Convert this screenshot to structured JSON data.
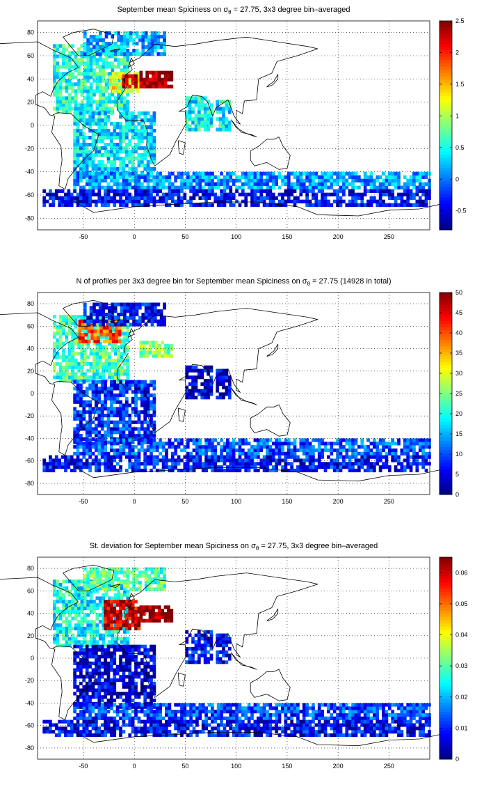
{
  "chart_data": [
    {
      "type": "heatmap",
      "title_prefix": "September mean Spiciness on ",
      "title_symbol": "σ",
      "title_sub": "θ",
      "title_suffix": " = 27.75, 3x3 degree bin–averaged",
      "xlim": [
        -95,
        290
      ],
      "ylim": [
        -90,
        90
      ],
      "xticks": [
        -50,
        0,
        50,
        100,
        150,
        200,
        250
      ],
      "yticks": [
        80,
        60,
        40,
        20,
        0,
        -20,
        -40,
        -60,
        -80
      ],
      "grid": true,
      "colorbar": {
        "min": -0.8,
        "max": 2.5,
        "ticks": [
          2.5,
          2,
          1.5,
          1,
          0.5,
          0,
          -0.5
        ],
        "tick_labels": [
          "2.5",
          "2",
          "1.5",
          "1",
          "0.5",
          "0",
          "-0.5"
        ]
      },
      "regions": [
        {
          "name": "north-atlantic",
          "x": [
            -80,
            -5
          ],
          "y": [
            10,
            70
          ],
          "value": 0.55
        },
        {
          "name": "gulf-stream-core",
          "x": [
            -25,
            5
          ],
          "y": [
            28,
            46
          ],
          "value": 1.2
        },
        {
          "name": "med-outflow",
          "x": [
            -12,
            2
          ],
          "y": [
            32,
            44
          ],
          "value": 2.2
        },
        {
          "name": "mediterranean",
          "x": [
            5,
            38
          ],
          "y": [
            32,
            46
          ],
          "value": 2.5
        },
        {
          "name": "south-atlantic",
          "x": [
            -60,
            20
          ],
          "y": [
            -45,
            10
          ],
          "value": 0.35
        },
        {
          "name": "arabian-sea",
          "x": [
            50,
            75
          ],
          "y": [
            -5,
            25
          ],
          "value": 0.45
        },
        {
          "name": "bay-of-bengal",
          "x": [
            80,
            95
          ],
          "y": [
            -5,
            20
          ],
          "value": 0.4
        },
        {
          "name": "southern-ocean-north",
          "x": [
            -60,
            290
          ],
          "y": [
            -55,
            -40
          ],
          "value": 0.1
        },
        {
          "name": "southern-ocean-south",
          "x": [
            -90,
            290
          ],
          "y": [
            -70,
            -55
          ],
          "value": -0.4
        },
        {
          "name": "arctic-nordic",
          "x": [
            -50,
            30
          ],
          "y": [
            60,
            80
          ],
          "value": 0.15
        }
      ]
    },
    {
      "type": "heatmap",
      "title_prefix": "N of profiles per 3x3 degree bin for September mean Spiciness on ",
      "title_symbol": "σ",
      "title_sub": "θ",
      "title_suffix": " = 27.75 (14928 in total)",
      "xlim": [
        -95,
        290
      ],
      "ylim": [
        -90,
        90
      ],
      "xticks": [
        -50,
        0,
        50,
        100,
        150,
        200,
        250
      ],
      "yticks": [
        80,
        60,
        40,
        20,
        0,
        -20,
        -40,
        -60,
        -80
      ],
      "grid": true,
      "colorbar": {
        "min": 0,
        "max": 50,
        "ticks": [
          50,
          45,
          40,
          35,
          30,
          25,
          20,
          15,
          10,
          5,
          0
        ],
        "tick_labels": [
          "50",
          "45",
          "40",
          "35",
          "30",
          "25",
          "20",
          "15",
          "10",
          "5",
          "0"
        ]
      },
      "total_profiles": 14928,
      "regions": [
        {
          "name": "north-atlantic",
          "x": [
            -80,
            -5
          ],
          "y": [
            10,
            70
          ],
          "value": 22
        },
        {
          "name": "labrador-irminger",
          "x": [
            -55,
            -15
          ],
          "y": [
            45,
            65
          ],
          "value": 40
        },
        {
          "name": "mediterranean",
          "x": [
            5,
            38
          ],
          "y": [
            32,
            46
          ],
          "value": 25
        },
        {
          "name": "south-atlantic",
          "x": [
            -60,
            20
          ],
          "y": [
            -45,
            10
          ],
          "value": 8
        },
        {
          "name": "arabian-sea",
          "x": [
            50,
            75
          ],
          "y": [
            -5,
            25
          ],
          "value": 5
        },
        {
          "name": "bay-of-bengal",
          "x": [
            80,
            95
          ],
          "y": [
            -5,
            20
          ],
          "value": 4
        },
        {
          "name": "southern-ocean-north",
          "x": [
            -60,
            290
          ],
          "y": [
            -55,
            -40
          ],
          "value": 10
        },
        {
          "name": "southern-ocean-south",
          "x": [
            -90,
            290
          ],
          "y": [
            -70,
            -55
          ],
          "value": 7
        },
        {
          "name": "arctic-nordic",
          "x": [
            -50,
            30
          ],
          "y": [
            60,
            80
          ],
          "value": 6
        }
      ]
    },
    {
      "type": "heatmap",
      "title_prefix": "St. deviation for September mean Spiciness on ",
      "title_symbol": "σ",
      "title_sub": "θ",
      "title_suffix": " = 27.75, 3x3 degree bin–averaged",
      "xlim": [
        -95,
        290
      ],
      "ylim": [
        -90,
        90
      ],
      "xticks": [
        -50,
        0,
        50,
        100,
        150,
        200,
        250
      ],
      "yticks": [
        80,
        60,
        40,
        20,
        0,
        -20,
        -40,
        -60,
        -80
      ],
      "grid": true,
      "colorbar": {
        "min": 0,
        "max": 0.065,
        "ticks": [
          0.06,
          0.05,
          0.04,
          0.03,
          0.02,
          0.01,
          0
        ],
        "tick_labels": [
          "0.06",
          "0.05",
          "0.04",
          "0.03",
          "0.02",
          "0.01",
          "0"
        ]
      },
      "regions": [
        {
          "name": "north-atlantic",
          "x": [
            -80,
            -5
          ],
          "y": [
            10,
            70
          ],
          "value": 0.025
        },
        {
          "name": "gulf-stream-core",
          "x": [
            -30,
            5
          ],
          "y": [
            25,
            50
          ],
          "value": 0.06
        },
        {
          "name": "mediterranean",
          "x": [
            5,
            38
          ],
          "y": [
            32,
            46
          ],
          "value": 0.065
        },
        {
          "name": "south-atlantic",
          "x": [
            -60,
            20
          ],
          "y": [
            -45,
            10
          ],
          "value": 0.006
        },
        {
          "name": "arabian-sea",
          "x": [
            50,
            75
          ],
          "y": [
            -5,
            25
          ],
          "value": 0.008
        },
        {
          "name": "bay-of-bengal",
          "x": [
            80,
            95
          ],
          "y": [
            -5,
            20
          ],
          "value": 0.007
        },
        {
          "name": "southern-ocean-north",
          "x": [
            -60,
            290
          ],
          "y": [
            -55,
            -40
          ],
          "value": 0.012
        },
        {
          "name": "southern-ocean-south",
          "x": [
            -90,
            290
          ],
          "y": [
            -70,
            -55
          ],
          "value": 0.008
        },
        {
          "name": "arctic-nordic",
          "x": [
            -50,
            30
          ],
          "y": [
            60,
            80
          ],
          "value": 0.03
        }
      ]
    }
  ]
}
